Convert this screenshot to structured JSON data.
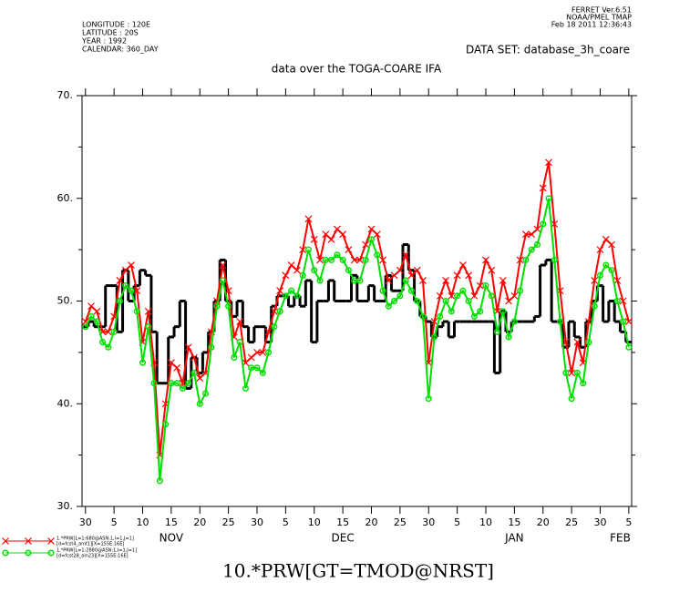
{
  "chart_data": {
    "type": "line",
    "header_left": [
      "LONGITUDE : 120E",
      "LATITUDE : 20S",
      "YEAR : 1992",
      "CALENDAR: 360_DAY"
    ],
    "header_right": [
      "FERRET  Ver.6.51",
      "NOAA/PMEL TMAP",
      "Feb 18 2011 12:36:43"
    ],
    "dataset": "DATA SET: database_3h_coare",
    "title": "data over the TOGA-COARE IFA",
    "xlabel": "10.*PRW[GT=TMOD@NRST]",
    "xlim": [
      -0.6,
      95.5
    ],
    "ylim": [
      30,
      70
    ],
    "xticks": [
      {
        "value": 0,
        "label": "30"
      },
      5,
      {
        "value": 10,
        "label": "10"
      },
      {
        "value": 15,
        "label": "15"
      },
      {
        "value": 20,
        "label": "20"
      },
      {
        "value": 25,
        "label": "25"
      },
      {
        "value": 30,
        "label": "30"
      },
      {
        "value": 35,
        "label": "5"
      },
      {
        "value": 40,
        "label": "10"
      },
      {
        "value": 45,
        "label": "15"
      },
      {
        "value": 50,
        "label": "20"
      },
      {
        "value": 55,
        "label": "25"
      },
      {
        "value": 60,
        "label": "30"
      },
      {
        "value": 65,
        "label": "5"
      },
      {
        "value": 70,
        "label": "10"
      },
      {
        "value": 75,
        "label": "15"
      },
      {
        "value": 80,
        "label": "20"
      },
      {
        "value": 85,
        "label": "25"
      },
      {
        "value": 90,
        "label": "30"
      },
      {
        "value": 95,
        "label": "5"
      }
    ],
    "month_labels": [
      {
        "value": 15,
        "label": "NOV"
      },
      {
        "value": 45,
        "label": "DEC"
      },
      {
        "value": 75,
        "label": "JAN"
      },
      {
        "value": 93.5,
        "label": "FEB"
      }
    ],
    "yticks": [
      {
        "value": 30,
        "label": "30."
      },
      {
        "value": 40,
        "label": "40."
      },
      {
        "value": 50,
        "label": "50."
      },
      {
        "value": 60,
        "label": "60."
      },
      {
        "value": 70,
        "label": "70."
      }
    ],
    "yminorticks": [
      35,
      45,
      55,
      65
    ],
    "x": [
      0,
      1,
      2,
      3,
      4,
      5,
      6,
      7,
      8,
      9,
      10,
      11,
      12,
      13,
      14,
      15,
      16,
      17,
      18,
      19,
      20,
      21,
      22,
      23,
      24,
      25,
      26,
      27,
      28,
      29,
      30,
      31,
      32,
      33,
      34,
      35,
      36,
      37,
      38,
      39,
      40,
      41,
      42,
      43,
      44,
      45,
      46,
      47,
      48,
      49,
      50,
      51,
      52,
      53,
      54,
      55,
      56,
      57,
      58,
      59,
      60,
      61,
      62,
      63,
      64,
      65,
      66,
      67,
      68,
      69,
      70,
      71,
      72,
      73,
      74,
      75,
      76,
      77,
      78,
      79,
      80,
      81,
      82,
      83,
      84,
      85,
      86,
      87,
      88,
      89,
      90,
      91,
      92,
      93,
      94,
      95
    ],
    "series": [
      {
        "style": "step",
        "color": "#000000",
        "values": [
          47.5,
          48,
          47.5,
          47.5,
          51.5,
          51.5,
          47,
          53,
          50,
          51.5,
          53,
          52.5,
          47,
          42,
          42,
          46.5,
          47.5,
          50,
          41.5,
          44.5,
          43,
          45,
          47,
          50,
          54,
          50,
          48.5,
          50,
          47.5,
          46,
          47.5,
          47.5,
          46,
          49.5,
          50.5,
          50.5,
          49.5,
          50.5,
          49.5,
          52,
          46,
          50,
          50,
          52,
          50,
          50,
          50,
          52.5,
          50,
          50,
          51.5,
          50,
          50,
          52.5,
          51,
          51,
          55.5,
          53,
          50,
          48.5,
          48,
          46.5,
          47.5,
          48,
          46.5,
          48,
          48,
          48,
          48,
          48,
          48,
          48,
          43,
          49,
          47,
          48,
          48,
          48,
          48,
          48.5,
          53.5,
          54,
          48,
          48,
          45.5,
          48,
          46.5,
          45.5,
          48,
          50,
          51.5,
          48,
          50,
          48,
          47,
          46
        ]
      },
      {
        "style": "cross",
        "color": "#ff0000",
        "name": "1.*PRW[L=1:680@ASN:1,I=1,J=1]",
        "name2": "[d=fcst4_amf1][X=155E:16E]",
        "values": [
          48,
          49.5,
          49,
          47,
          47,
          48.5,
          52,
          53,
          53.5,
          51,
          46,
          49,
          44,
          35,
          40,
          44,
          43.5,
          42,
          45.5,
          44.5,
          42.5,
          43,
          47,
          50,
          53.5,
          51,
          46.5,
          48,
          44,
          44.5,
          45,
          45,
          47,
          49,
          51,
          52.5,
          53.5,
          53,
          55,
          58,
          56,
          54,
          56.5,
          56,
          57,
          56.5,
          55,
          54,
          54,
          55.5,
          57,
          56.5,
          54,
          52,
          52.5,
          53,
          54.5,
          52.5,
          53,
          52,
          44,
          48,
          50.5,
          52,
          50.5,
          52.5,
          53.5,
          52.5,
          50.5,
          51.5,
          54,
          53,
          49,
          52,
          50,
          50.5,
          54,
          56.5,
          56.5,
          57,
          61,
          63.5,
          57.5,
          51,
          46,
          43,
          46,
          44,
          48,
          52,
          55,
          56,
          55.5,
          52,
          50,
          48
        ]
      },
      {
        "style": "circle",
        "color": "#00e000",
        "name": "1.*PRW[L=1:2880@ASN:1,I=1,J=1]",
        "name2": "[d=fcst28_aln23][X=155E:16E]",
        "values": [
          47.5,
          48.5,
          48,
          46,
          45.5,
          47,
          50,
          51.5,
          51,
          49,
          44,
          47.5,
          42,
          32.5,
          38,
          42,
          42,
          41.5,
          42,
          43,
          40,
          41,
          45.5,
          49.5,
          52,
          49.5,
          44.5,
          46,
          41.5,
          43.5,
          43.5,
          43,
          45,
          47.5,
          49,
          50.5,
          51,
          50.5,
          52.5,
          55,
          53,
          52,
          54,
          54,
          54.5,
          54,
          53,
          52,
          52,
          54,
          56,
          54.5,
          51,
          49.5,
          50,
          50.5,
          52,
          51,
          50,
          48.5,
          40.5,
          46.5,
          48.5,
          50,
          49,
          50.5,
          51,
          50,
          48.5,
          49,
          51.5,
          50.5,
          47,
          49,
          46.5,
          48,
          51,
          54,
          55,
          55.5,
          57.5,
          60,
          54,
          48,
          43,
          40.5,
          43,
          42,
          46,
          49.5,
          52.5,
          53.5,
          53,
          50,
          48,
          45.5
        ]
      }
    ]
  }
}
